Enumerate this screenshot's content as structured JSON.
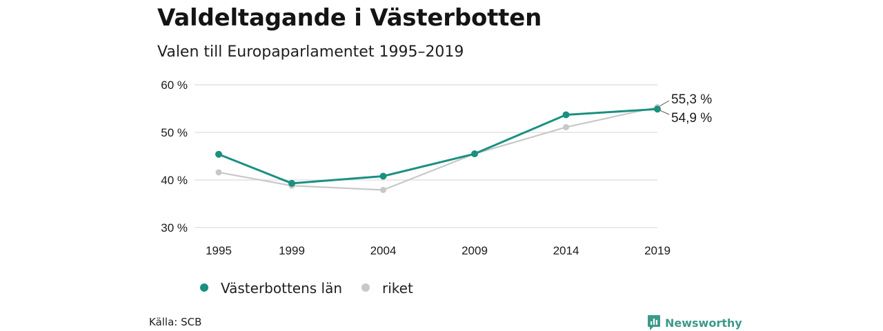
{
  "title": "Valdeltagande i Västerbotten",
  "subtitle": "Valen till Europaparlamentet 1995–2019",
  "source": "Källa: SCB",
  "brand": {
    "name": "Newsworthy",
    "icon": "bar-chart-speech-bubble-icon",
    "color": "#3d9a8a"
  },
  "colors": {
    "lan": "#1a9080",
    "riket": "#c8c8c8",
    "grid": "#dcdcdc"
  },
  "chart_data": {
    "type": "line",
    "title": "Valdeltagande i Västerbotten",
    "subtitle": "Valen till Europaparlamentet 1995–2019",
    "xlabel": "",
    "ylabel": "",
    "x": [
      1995,
      1999,
      2004,
      2009,
      2014,
      2019
    ],
    "x_tick_labels": [
      "1995",
      "1999",
      "2004",
      "2009",
      "2014",
      "2019"
    ],
    "y_ticks": [
      30,
      40,
      50,
      60
    ],
    "y_tick_labels": [
      "30 %",
      "40 %",
      "50 %",
      "60 %"
    ],
    "ylim": [
      30,
      60
    ],
    "grid": true,
    "legend_position": "bottom-left",
    "series": [
      {
        "name": "Västerbottens län",
        "color": "#1a9080",
        "values": [
          45.4,
          39.3,
          40.8,
          45.5,
          53.7,
          54.9
        ],
        "end_label": "54,9 %"
      },
      {
        "name": "riket",
        "color": "#c8c8c8",
        "values": [
          41.6,
          38.8,
          37.9,
          45.5,
          51.1,
          55.3
        ],
        "end_label": "55,3 %"
      }
    ]
  }
}
